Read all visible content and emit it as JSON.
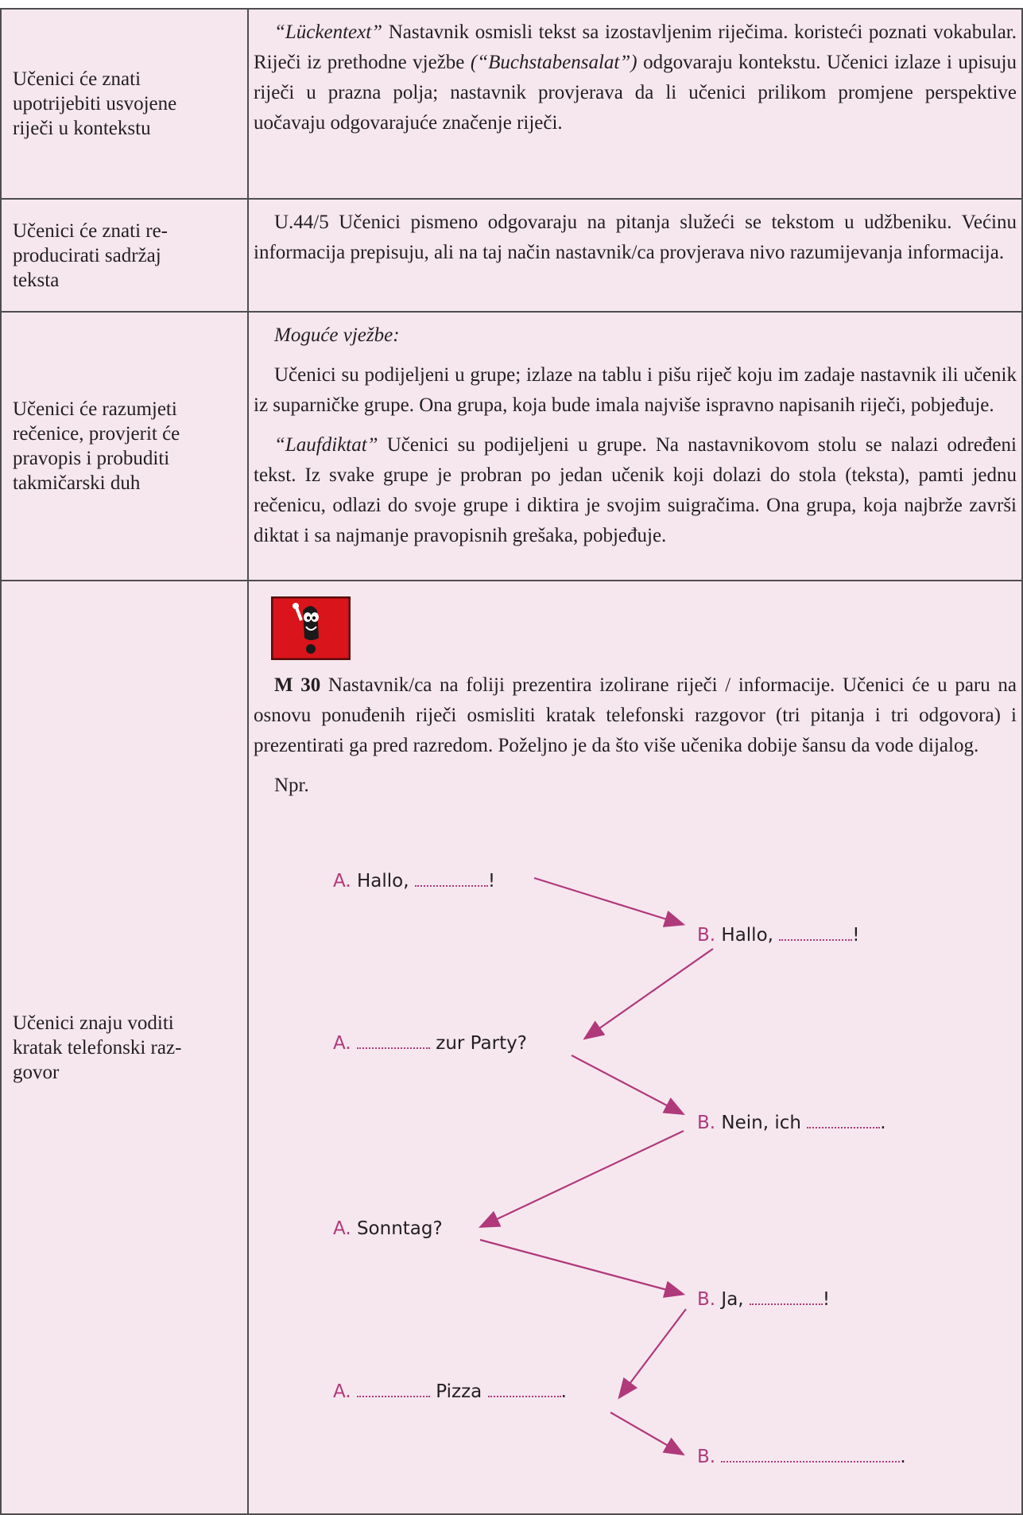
{
  "table": {
    "rows": [
      {
        "outcome": "Učenici će znati\nupotrijebiti usvojene\nriječi u kontekstu",
        "activity": [
          [
            {
              "text": "“Lückentext”",
              "italic": true
            },
            {
              "text": " Nastavnik osmisli tekst sa izostavljenim riječima. koristeći poznati vokabular. Riječi iz prethodne vježbe "
            },
            {
              "text": "(“Buchstabensalat”)",
              "italic": true
            },
            {
              "text": " odgovaraju kontekstu. Učenici izlaze i upisuju riječi u prazna polja; nastavnik provjerava da li učenici prilikom promjene perspektive uočavaju odgovarajuće značenje riječi."
            }
          ]
        ]
      },
      {
        "outcome": "Učenici će znati re-\nproducirati sadržaj\nteksta",
        "activity": [
          [
            {
              "text": "U.44/5 Učenici pismeno odgovaraju na pitanja služeći se tekstom u udžbeniku. Većinu informacija prepisuju, ali na taj način nastavnik/ca provjerava nivo razumijevanja informacija."
            }
          ]
        ]
      },
      {
        "outcome": "Učenici će razumjeti\nrečenice, provjerit će\npravopis i probuditi\ntakmičarski duh",
        "activity": [
          [
            {
              "text": "Moguće vježbe:",
              "italic": true
            }
          ],
          [
            {
              "text": "Učenici su podijeljeni u grupe; izlaze na tablu i pišu riječ koju im zadaje nastavnik ili učenik iz suparničke grupe. Ona grupa, koja bude imala najviše ispravno napisanih riječi, pobjeđuje."
            }
          ],
          [
            {
              "text": "“Laufdiktat”",
              "italic": true
            },
            {
              "text": " Učenici su podijeljeni u grupe. Na nastavnikovom stolu se nalazi određeni tekst. Iz svake grupe je probran po jedan učenik koji dolazi do stola (teksta), pamti jednu rečenicu, odlazi do svoje grupe i diktira je svojim suigračima. Ona grupa, koja najbrže završi diktat i sa najmanje pravopisnih grešaka, pobjeđuje."
            }
          ]
        ]
      },
      {
        "outcome": "Učenici znaju voditi\nkratak telefonski raz-\ngovor",
        "activity": [
          [
            {
              "text": "M 30",
              "bold": true
            },
            {
              "text": " Nastavnik/ca na foliji prezentira izolirane riječi / informacije. Učenici će u paru na osnovu ponuđenih riječi osmisliti kratak telefonski razgovor (tri pitanja i tri odgovora) i prezentirati ga pred razredom. Poželjno je da što više učenika dobije šansu da vode dijalog."
            }
          ],
          [
            {
              "text": "Npr."
            }
          ]
        ],
        "dialogue": [
          {
            "speaker": "A.",
            "segments": [
              "Hallo,",
              null,
              "!"
            ]
          },
          {
            "speaker": "B.",
            "segments": [
              "Hallo,",
              null,
              "!"
            ]
          },
          {
            "speaker": "A.",
            "segments": [
              null,
              "zur Party?"
            ]
          },
          {
            "speaker": "B.",
            "segments": [
              "Nein, ich",
              null,
              "."
            ]
          },
          {
            "speaker": "A.",
            "segments": [
              "Sonntag?"
            ]
          },
          {
            "speaker": "B.",
            "segments": [
              "Ja,",
              null,
              "!"
            ]
          },
          {
            "speaker": "A.",
            "segments": [
              null,
              "Pizza",
              null,
              "."
            ]
          },
          {
            "speaker": "B.",
            "segments": [
              null,
              "."
            ]
          }
        ]
      }
    ]
  }
}
